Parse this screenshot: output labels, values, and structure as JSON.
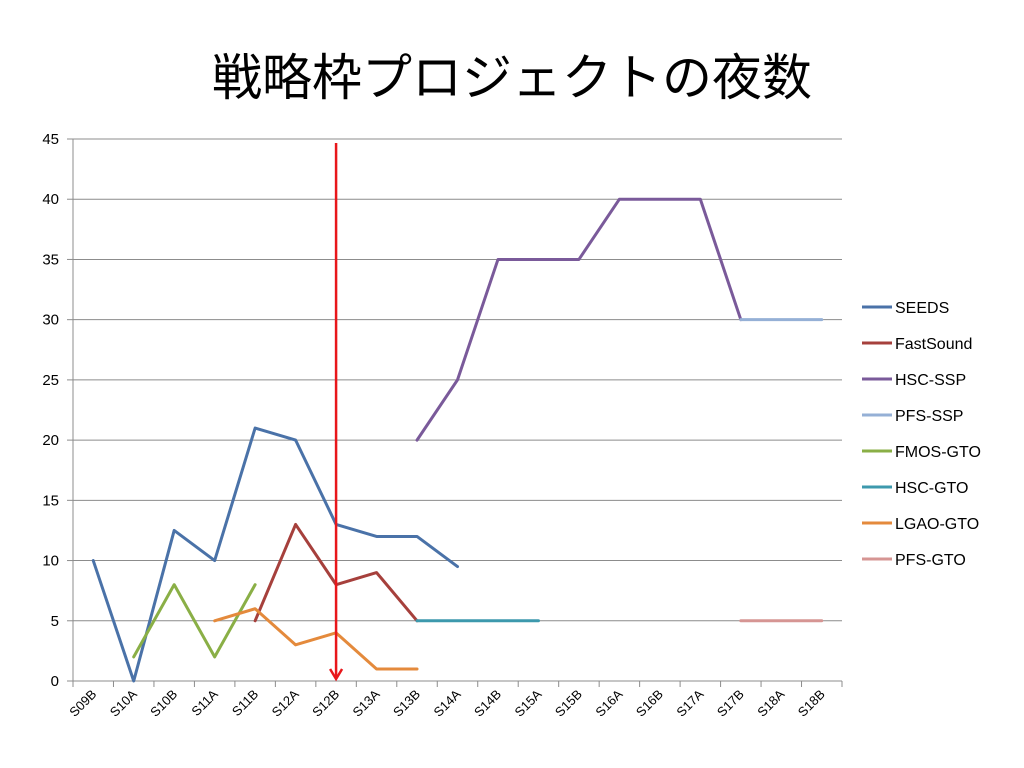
{
  "title": "戦略枠プロジェクトの夜数",
  "colors": {
    "grid": "#8c8c8c",
    "axis": "#8c8c8c",
    "marker_line": "#e8171b"
  },
  "chart_data": {
    "type": "line",
    "title": "戦略枠プロジェクトの夜数",
    "xlabel": "",
    "ylabel": "",
    "ylim": [
      0,
      45
    ],
    "y_ticks": [
      0,
      5,
      10,
      15,
      20,
      25,
      30,
      35,
      40,
      45
    ],
    "grid": true,
    "legend_position": "right",
    "categories": [
      "S09B",
      "S10A",
      "S10B",
      "S11A",
      "S11B",
      "S12A",
      "S12B",
      "S13A",
      "S13B",
      "S14A",
      "S14B",
      "S15A",
      "S15B",
      "S16A",
      "S16B",
      "S17A",
      "S17B",
      "S18A",
      "S18B"
    ],
    "vertical_marker": {
      "category_index": 6.5,
      "color": "#e8171b",
      "arrow": "down"
    },
    "series": [
      {
        "name": "SEEDS",
        "color": "#4a72a8",
        "values": [
          10,
          0,
          12.5,
          10,
          21,
          20,
          13,
          12,
          12,
          9.5,
          null,
          null,
          null,
          null,
          null,
          null,
          null,
          null,
          null
        ]
      },
      {
        "name": "FastSound",
        "color": "#a6403c",
        "values": [
          null,
          null,
          null,
          null,
          5,
          13,
          8,
          9,
          5,
          null,
          null,
          null,
          null,
          null,
          null,
          null,
          null,
          null,
          null
        ]
      },
      {
        "name": "HSC-SSP",
        "color": "#7a5a9a",
        "values": [
          null,
          null,
          null,
          null,
          null,
          null,
          null,
          null,
          20,
          25,
          35,
          35,
          35,
          40,
          40,
          40,
          30,
          null,
          null
        ]
      },
      {
        "name": "PFS-SSP",
        "color": "#95b0d6",
        "values": [
          null,
          null,
          null,
          null,
          null,
          null,
          null,
          null,
          null,
          null,
          null,
          null,
          null,
          null,
          null,
          null,
          30,
          30,
          30
        ]
      },
      {
        "name": "FMOS-GTO",
        "color": "#8aaf46",
        "values": [
          null,
          2,
          8,
          2,
          8,
          null,
          null,
          null,
          null,
          null,
          null,
          null,
          null,
          null,
          null,
          null,
          null,
          null,
          null
        ]
      },
      {
        "name": "HSC-GTO",
        "color": "#3d99ad",
        "values": [
          null,
          null,
          null,
          null,
          null,
          null,
          null,
          null,
          5,
          5,
          5,
          5,
          null,
          null,
          null,
          null,
          null,
          null,
          null
        ]
      },
      {
        "name": "LGAO-GTO",
        "color": "#e48a3c",
        "values": [
          null,
          null,
          null,
          5,
          6,
          3,
          4,
          1,
          1,
          null,
          null,
          null,
          null,
          null,
          null,
          null,
          null,
          null,
          null
        ]
      },
      {
        "name": "PFS-GTO",
        "color": "#d69593",
        "values": [
          null,
          null,
          null,
          null,
          null,
          null,
          null,
          null,
          null,
          null,
          null,
          null,
          null,
          null,
          null,
          null,
          5,
          5,
          5
        ]
      }
    ]
  }
}
